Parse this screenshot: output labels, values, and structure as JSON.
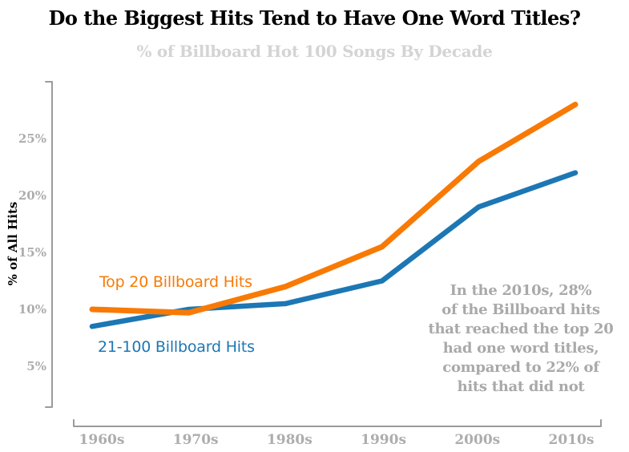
{
  "header": {
    "title": "Do the Biggest Hits Tend to Have One Word Titles?",
    "subtitle": "% of Billboard Hot 100 Songs By Decade"
  },
  "colors": {
    "orange": "#f87a05",
    "blue": "#1c77b4",
    "title_text": "#000000",
    "subtitle_text": "#d4d4d4",
    "tick_text": "#adadad",
    "axis_line": "#9b9b9b",
    "annotation_text": "#a9a9a9"
  },
  "chart_data": {
    "type": "line",
    "title": "Do the Biggest Hits Tend to Have One Word Titles?",
    "subtitle": "% of Billboard Hot 100 Songs By Decade",
    "categories": [
      "1960s",
      "1970s",
      "1980s",
      "1990s",
      "2000s",
      "2010s"
    ],
    "series": [
      {
        "name": "Top 20 Billboard Hits",
        "color_key": "orange",
        "values": [
          10,
          9.7,
          12,
          15.5,
          23,
          28
        ]
      },
      {
        "name": "21-100 Billboard Hits",
        "color_key": "blue",
        "values": [
          8.5,
          10,
          10.5,
          12.5,
          19,
          22
        ]
      }
    ],
    "xlabel": "",
    "ylabel": "% of All Hits",
    "y_ticks": [
      5,
      10,
      15,
      20,
      25
    ],
    "y_tick_format": "{v}%",
    "ylim": [
      0,
      30
    ],
    "grid": false,
    "legend_position": "inline-labels-near-lines"
  },
  "annotation": {
    "lines": [
      "In the 2010s, 28%",
      "of the Billboard hits",
      "that reached the top 20",
      "had one word titles,",
      "compared to 22% of",
      "hits that did not"
    ]
  }
}
